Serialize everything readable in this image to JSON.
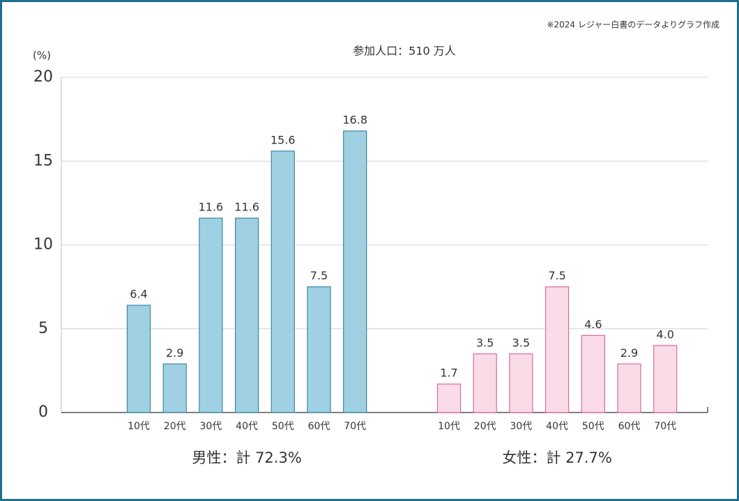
{
  "chart_data": {
    "type": "bar",
    "note": "※2024 レジャー白書のデータよりグラフ作成",
    "title": "参加人口：510 万人",
    "y_unit": "(%)",
    "categories": [
      "10代",
      "20代",
      "30代",
      "40代",
      "50代",
      "60代",
      "70代"
    ],
    "series": [
      {
        "name": "男性：計 72.3%",
        "color": "#9fd1e3",
        "edge_color": "#3b86a6",
        "values": [
          6.4,
          2.9,
          11.6,
          11.6,
          15.6,
          7.5,
          16.8
        ],
        "value_labels": [
          "6.4",
          "2.9",
          "11.6",
          "11.6",
          "15.6",
          "7.5",
          "16.8"
        ]
      },
      {
        "name": "女性：計 27.7%",
        "color": "#fadbe8",
        "edge_color": "#e0679c",
        "values": [
          1.7,
          3.5,
          3.5,
          7.5,
          4.6,
          2.9,
          4.0
        ],
        "value_labels": [
          "1.7",
          "3.5",
          "3.5",
          "7.5",
          "4.6",
          "2.9",
          "4.0"
        ]
      }
    ],
    "ylim": [
      0,
      20
    ],
    "yticks": [
      0,
      5,
      10,
      15,
      20
    ],
    "grid": true
  }
}
